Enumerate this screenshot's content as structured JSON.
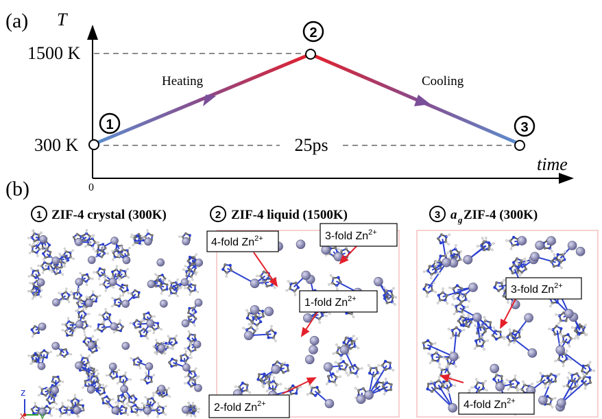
{
  "panel_a": {
    "label": "(a)",
    "y_axis_label": "T",
    "x_axis_label": "time",
    "origin_label": "0",
    "y_tick_high": "1500 K",
    "y_tick_low": "300 K",
    "duration_label": "25ps",
    "heating_label": "Heating",
    "cooling_label": "Cooling",
    "stage_markers": [
      "①",
      "②",
      "③"
    ],
    "colors": {
      "cold": "#5b8fd0",
      "hot": "#e4202b",
      "mid": "#8a4a8a"
    }
  },
  "panel_b": {
    "label": "(b)",
    "snapshots": [
      {
        "marker": "①",
        "title": "ZIF-4 crystal (300K)"
      },
      {
        "marker": "②",
        "title": "ZIF-4 liquid (1500K)"
      },
      {
        "marker": "③",
        "title_prefix": "a",
        "title_subscript": "g",
        "title_rest": "ZIF-4 (300K)"
      }
    ],
    "annotations_liquid": [
      {
        "text": "4-fold Zn",
        "sup": "2+"
      },
      {
        "text": "3-fold Zn",
        "sup": "2+"
      },
      {
        "text": "1-fold Zn",
        "sup": "2+"
      },
      {
        "text": "2-fold Zn",
        "sup": "2+"
      }
    ],
    "annotations_glass": [
      {
        "text": "3-fold Zn",
        "sup": "2+"
      },
      {
        "text": "4-fold Zn",
        "sup": "2+"
      }
    ],
    "axis_triad": {
      "z": "z",
      "x": "x",
      "y": "y"
    },
    "atom_colors": {
      "zn": "#8c8cb4",
      "n": "#2a3fd0",
      "c": "#7a7a7a",
      "h": "#dcdcdc"
    }
  }
}
